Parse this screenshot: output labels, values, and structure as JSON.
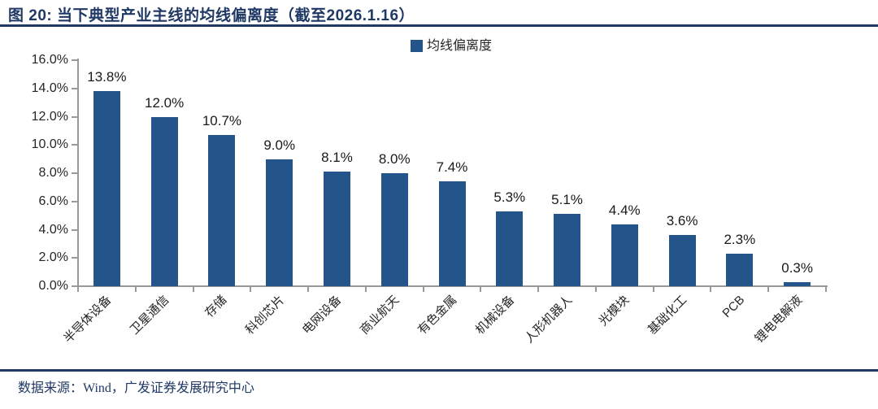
{
  "figure": {
    "title": "图 20: 当下典型产业主线的均线偏离度（截至2026.1.16）",
    "source": "数据来源：Wind，广发证券发展研究中心"
  },
  "chart_data": {
    "type": "bar",
    "title": "当下典型产业主线的均线偏离度（截至2026.1.16）",
    "legend_label": "均线偏离度",
    "legend_position": "top-center",
    "categories": [
      "半导体设备",
      "卫星通信",
      "存储",
      "科创芯片",
      "电网设备",
      "商业航天",
      "有色金属",
      "机械设备",
      "人形机器人",
      "光模块",
      "基础化工",
      "PCB",
      "锂电电解液"
    ],
    "values": [
      13.8,
      12.0,
      10.7,
      9.0,
      8.1,
      8.0,
      7.4,
      5.3,
      5.1,
      4.4,
      3.6,
      2.3,
      0.3
    ],
    "value_labels": [
      "13.8%",
      "12.0%",
      "10.7%",
      "9.0%",
      "8.1%",
      "8.0%",
      "7.4%",
      "5.3%",
      "5.1%",
      "4.4%",
      "3.6%",
      "2.3%",
      "0.3%"
    ],
    "y_ticks": [
      "0.0%",
      "2.0%",
      "4.0%",
      "6.0%",
      "8.0%",
      "10.0%",
      "12.0%",
      "14.0%",
      "16.0%"
    ],
    "ylim": [
      0,
      16
    ],
    "grid": false,
    "xlabel": "",
    "ylabel": "",
    "colors": {
      "bar": "#23548A",
      "accent": "#1F3864",
      "axis": "#999999",
      "text": "#262626"
    }
  }
}
